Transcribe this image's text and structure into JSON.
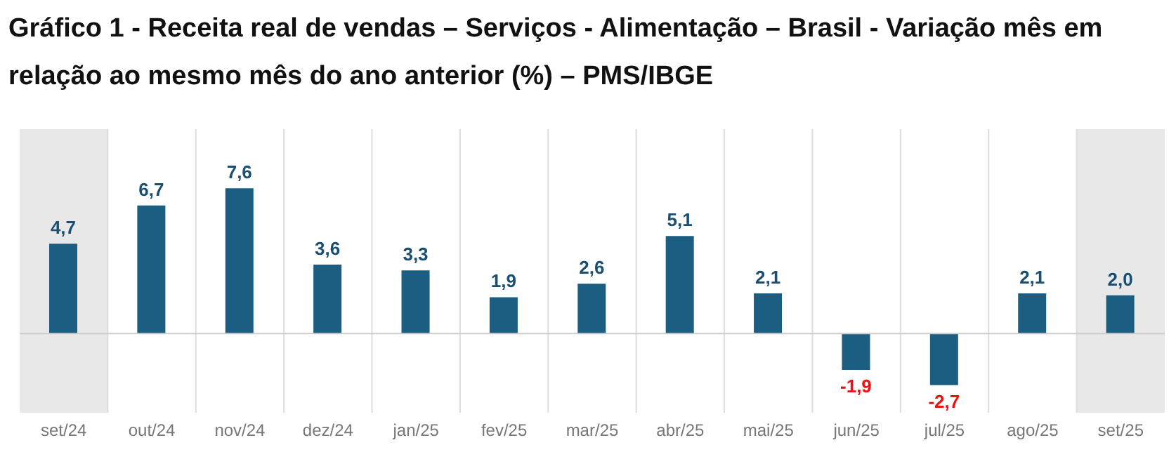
{
  "chart_data": {
    "type": "bar",
    "title": "Gráfico 1 - Receita real de vendas – Serviços - Alimentação – Brasil - Variação mês em relação ao mesmo mês do ano anterior (%) – PMS/IBGE",
    "categories": [
      "set/24",
      "out/24",
      "nov/24",
      "dez/24",
      "jan/25",
      "fev/25",
      "mar/25",
      "abr/25",
      "mai/25",
      "jun/25",
      "jul/25",
      "ago/25",
      "set/25"
    ],
    "values": [
      4.7,
      6.7,
      7.6,
      3.6,
      3.3,
      1.9,
      2.6,
      5.1,
      2.1,
      -1.9,
      -2.7,
      2.1,
      2.0
    ],
    "value_labels": [
      "4,7",
      "6,7",
      "7,6",
      "3,6",
      "3,3",
      "1,9",
      "2,6",
      "5,1",
      "2,1",
      "-1,9",
      "-2,7",
      "2,1",
      "2,0"
    ],
    "color": "#1b5e82",
    "grid": "x",
    "bands": [
      {
        "axis": "x",
        "from": "set/24",
        "to": "set/24",
        "color": "#e8e8e8"
      },
      {
        "axis": "x",
        "from": "set/25",
        "to": "set/25",
        "color": "#e8e8e8"
      }
    ]
  }
}
